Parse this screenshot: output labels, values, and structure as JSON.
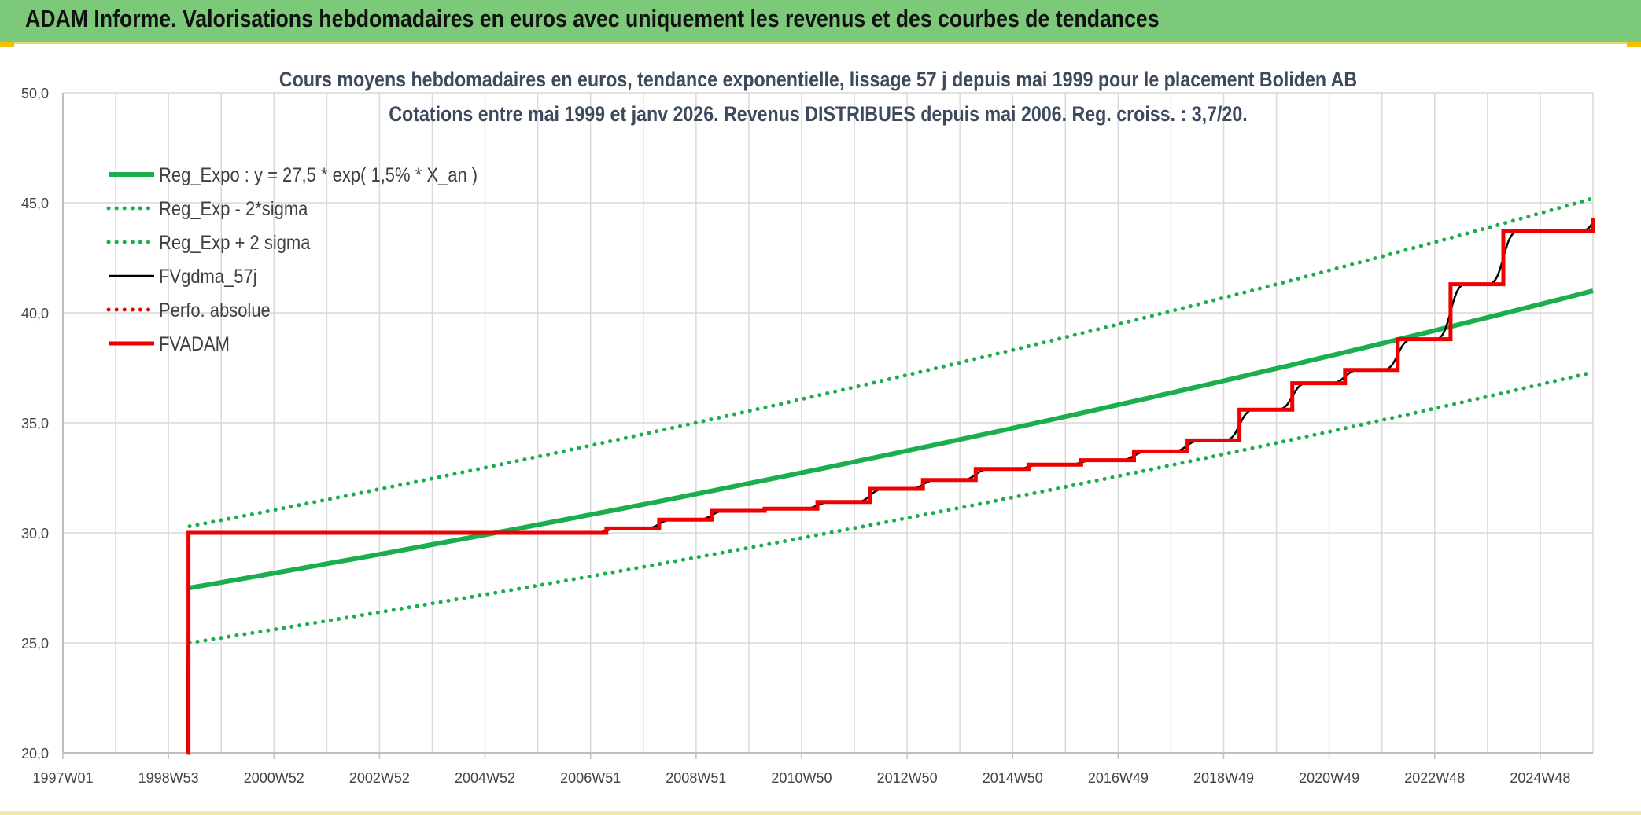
{
  "header": {
    "title": "ADAM Informe. Valorisations hebdomadaires en euros avec uniquement les revenus et des courbes de tendances"
  },
  "colors": {
    "header_bg": "#7cc97a",
    "green": "#1aae4e",
    "red": "#ee0000",
    "black": "#000000",
    "grid": "#d9d9d9"
  },
  "chart_data": {
    "type": "line",
    "title": "Cours moyens hebdomadaires en euros, tendance exponentielle, lissage 57 j depuis mai 1999 pour le placement Boliden AB",
    "subtitle": "Cotations entre mai 1999 et janv 2026. Revenus DISTRIBUES depuis mai 2006. Reg. croiss. : 3,7/20.",
    "x_tick_labels": [
      "1997W01",
      "1998W53",
      "2000W52",
      "2002W52",
      "2004W52",
      "2006W51",
      "2008W51",
      "2010W50",
      "2012W50",
      "2014W50",
      "2016W49",
      "2018W49",
      "2020W49",
      "2022W48",
      "2024W48"
    ],
    "x_domain": [
      1997.0,
      2026.0
    ],
    "ylim": [
      20,
      50
    ],
    "y_ticks": [
      "20,0",
      "25,0",
      "30,0",
      "35,0",
      "40,0",
      "45,0",
      "50,0"
    ],
    "grid": true,
    "legend_position": "top-left",
    "series": [
      {
        "name": "Reg_Expo : y = 27,5 * exp( 1,5% *  X_an )",
        "style": "solid-thick",
        "color": "#1aae4e",
        "x": [
          1999.4,
          2026.0
        ],
        "y": [
          27.5,
          41.0
        ],
        "model": "exponential"
      },
      {
        "name": "Reg_Exp - 2*sigma",
        "style": "dotted",
        "color": "#1aae4e",
        "x": [
          1999.4,
          2026.0
        ],
        "y": [
          25.0,
          37.3
        ],
        "model": "exponential"
      },
      {
        "name": "Reg_Exp + 2 sigma",
        "style": "dotted",
        "color": "#1aae4e",
        "x": [
          1999.4,
          2026.0
        ],
        "y": [
          30.3,
          45.2
        ],
        "model": "exponential"
      },
      {
        "name": "FVgdma_57j",
        "style": "solid",
        "color": "#000000",
        "smoothed": true,
        "x": [
          1999.35,
          1999.38,
          2006.4,
          2007.3,
          2008.3,
          2009.3,
          2010.3,
          2011.3,
          2012.3,
          2013.3,
          2014.3,
          2015.3,
          2016.3,
          2017.3,
          2018.3,
          2019.3,
          2020.3,
          2021.3,
          2022.3,
          2023.3,
          2024.3,
          2026.0
        ],
        "y": [
          20.0,
          30.0,
          30.0,
          30.2,
          30.6,
          31.0,
          31.1,
          31.4,
          32.0,
          32.4,
          32.9,
          33.1,
          33.3,
          33.7,
          34.2,
          35.6,
          36.8,
          37.4,
          38.8,
          41.3,
          43.7,
          44.3
        ]
      },
      {
        "name": "Perfo. absolue",
        "style": "dotted",
        "color": "#ee0000",
        "x": [],
        "y": []
      },
      {
        "name": "FVADAM",
        "style": "step-thick",
        "color": "#ee0000",
        "x": [
          1999.35,
          1999.38,
          2006.4,
          2007.3,
          2008.3,
          2009.3,
          2010.3,
          2011.3,
          2012.3,
          2013.3,
          2014.3,
          2015.3,
          2016.3,
          2017.3,
          2018.3,
          2019.3,
          2020.3,
          2021.3,
          2022.3,
          2023.3,
          2024.3,
          2026.0
        ],
        "y": [
          20.0,
          30.0,
          30.0,
          30.2,
          30.6,
          31.0,
          31.1,
          31.4,
          32.0,
          32.4,
          32.9,
          33.1,
          33.3,
          33.7,
          34.2,
          35.6,
          36.8,
          37.4,
          38.8,
          41.3,
          43.7,
          44.3
        ]
      }
    ]
  }
}
